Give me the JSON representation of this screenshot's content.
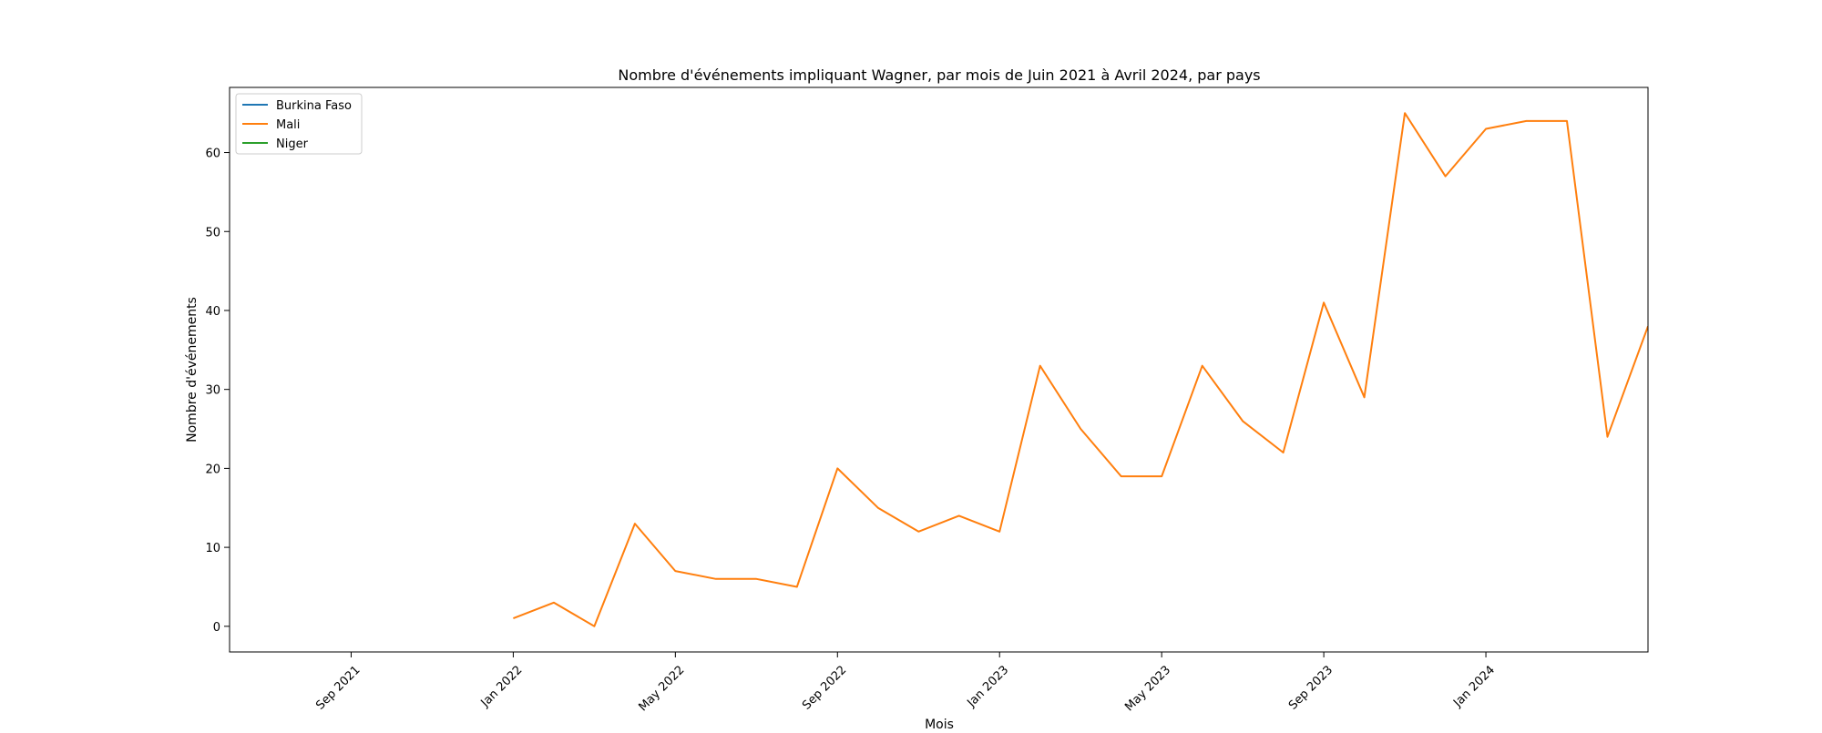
{
  "chart_data": {
    "type": "line",
    "title": "Nombre d'événements impliquant Wagner, par mois de Juin 2021 à Avril 2024, par pays",
    "xlabel": "Mois",
    "ylabel": "Nombre d'événements",
    "x_type": "date",
    "xlim": [
      "2021-06-01",
      "2024-04-01"
    ],
    "ylim": [
      -3.25,
      68.25
    ],
    "x_ticks": [
      {
        "date": "2021-09-01",
        "label": "Sep 2021"
      },
      {
        "date": "2022-01-01",
        "label": "Jan 2022"
      },
      {
        "date": "2022-05-01",
        "label": "May 2022"
      },
      {
        "date": "2022-09-01",
        "label": "Sep 2022"
      },
      {
        "date": "2023-01-01",
        "label": "Jan 2023"
      },
      {
        "date": "2023-05-01",
        "label": "May 2023"
      },
      {
        "date": "2023-09-01",
        "label": "Sep 2023"
      },
      {
        "date": "2024-01-01",
        "label": "Jan 2024"
      }
    ],
    "y_ticks": [
      0,
      10,
      20,
      30,
      40,
      50,
      60
    ],
    "grid": false,
    "legend_position": "top-left",
    "series": [
      {
        "name": "Burkina Faso",
        "color": "#1f77b4",
        "points": []
      },
      {
        "name": "Mali",
        "color": "#ff7f0e",
        "points": [
          {
            "x": "2022-01-01",
            "y": 1
          },
          {
            "x": "2022-02-01",
            "y": 3
          },
          {
            "x": "2022-03-01",
            "y": 0
          },
          {
            "x": "2022-04-01",
            "y": 13
          },
          {
            "x": "2022-05-01",
            "y": 7
          },
          {
            "x": "2022-06-01",
            "y": 6
          },
          {
            "x": "2022-07-01",
            "y": 6
          },
          {
            "x": "2022-08-01",
            "y": 5
          },
          {
            "x": "2022-09-01",
            "y": 20
          },
          {
            "x": "2022-10-01",
            "y": 15
          },
          {
            "x": "2022-11-01",
            "y": 12
          },
          {
            "x": "2022-12-01",
            "y": 14
          },
          {
            "x": "2023-01-01",
            "y": 12
          },
          {
            "x": "2023-02-01",
            "y": 33
          },
          {
            "x": "2023-03-01",
            "y": 25
          },
          {
            "x": "2023-04-01",
            "y": 19
          },
          {
            "x": "2023-05-01",
            "y": 19
          },
          {
            "x": "2023-06-01",
            "y": 33
          },
          {
            "x": "2023-07-01",
            "y": 26
          },
          {
            "x": "2023-08-01",
            "y": 22
          },
          {
            "x": "2023-09-01",
            "y": 41
          },
          {
            "x": "2023-10-01",
            "y": 29
          },
          {
            "x": "2023-11-01",
            "y": 65
          },
          {
            "x": "2023-12-01",
            "y": 57
          },
          {
            "x": "2024-01-01",
            "y": 63
          },
          {
            "x": "2024-02-01",
            "y": 64
          },
          {
            "x": "2024-03-01",
            "y": 64
          },
          {
            "x": "2024-04-01",
            "y": 24
          },
          {
            "x": "2024-05-01",
            "y": 38
          }
        ]
      },
      {
        "name": "Niger",
        "color": "#2ca02c",
        "points": []
      }
    ]
  }
}
